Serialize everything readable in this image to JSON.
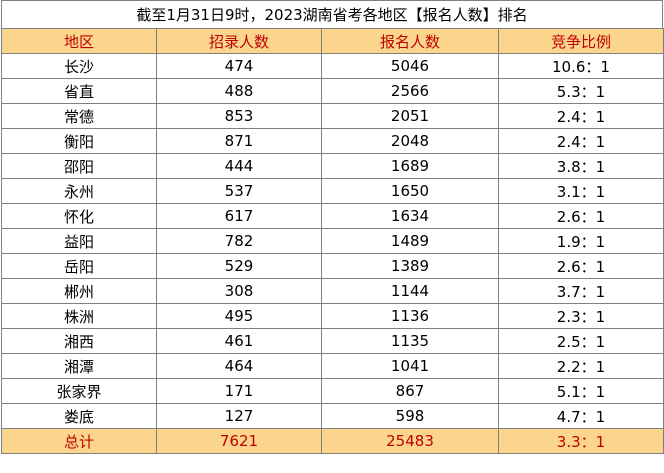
{
  "title": "截至1月31日9时，2023湖南省考各地区【报名人数】排名",
  "headers": [
    "地区",
    "招录人数",
    "报名人数",
    "竞争比例"
  ],
  "rows": [
    [
      "长沙",
      "474",
      "5046",
      "10.6：1"
    ],
    [
      "省直",
      "488",
      "2566",
      "5.3：1"
    ],
    [
      "常德",
      "853",
      "2051",
      "2.4：1"
    ],
    [
      "衡阳",
      "871",
      "2048",
      "2.4：1"
    ],
    [
      "邵阳",
      "444",
      "1689",
      "3.8：1"
    ],
    [
      "永州",
      "537",
      "1650",
      "3.1：1"
    ],
    [
      "怀化",
      "617",
      "1634",
      "2.6：1"
    ],
    [
      "益阳",
      "782",
      "1489",
      "1.9：1"
    ],
    [
      "岳阳",
      "529",
      "1389",
      "2.6：1"
    ],
    [
      "郴州",
      "308",
      "1144",
      "3.7：1"
    ],
    [
      "株洲",
      "495",
      "1136",
      "2.3：1"
    ],
    [
      "湘西",
      "461",
      "1135",
      "2.5：1"
    ],
    [
      "湘潭",
      "464",
      "1041",
      "2.2：1"
    ],
    [
      "张家界",
      "171",
      "867",
      "5.1：1"
    ],
    [
      "娄底",
      "127",
      "598",
      "4.7：1"
    ]
  ],
  "total": [
    "总计",
    "7621",
    "25483",
    "3.3：1"
  ],
  "colors": {
    "header_bg": "#fbd58c",
    "accent_text": "#c00000"
  }
}
